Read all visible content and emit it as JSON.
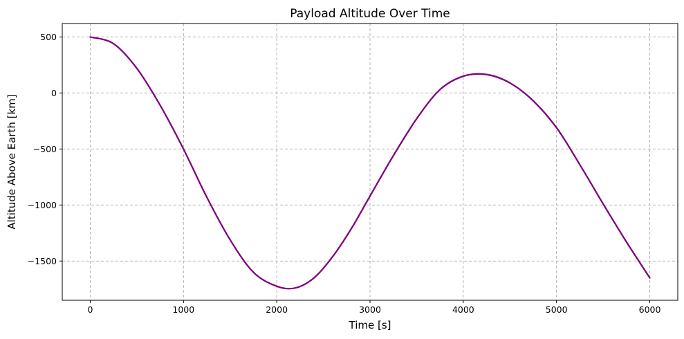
{
  "chart_data": {
    "type": "line",
    "title": "Payload Altitude Over Time",
    "xlabel": "Time [s]",
    "ylabel": "Altitude Above Earth [km]",
    "xlim": [
      -300,
      6300
    ],
    "ylim": [
      -1850,
      620
    ],
    "xticks": [
      0,
      1000,
      2000,
      3000,
      4000,
      5000,
      6000
    ],
    "xtick_labels": [
      "0",
      "1000",
      "2000",
      "3000",
      "4000",
      "5000",
      "6000"
    ],
    "yticks": [
      500,
      0,
      -500,
      -1000,
      -1500
    ],
    "ytick_labels": [
      "500",
      "0",
      "−500",
      "−1000",
      "−1500"
    ],
    "grid": true,
    "series": [
      {
        "color": "#800080",
        "x": [
          0,
          250,
          500,
          750,
          1000,
          1250,
          1500,
          1750,
          2000,
          2200,
          2400,
          2600,
          2800,
          3000,
          3250,
          3500,
          3750,
          4000,
          4250,
          4500,
          4750,
          5000,
          5250,
          5500,
          5750,
          6000
        ],
        "y": [
          500,
          440,
          220,
          -110,
          -500,
          -930,
          -1310,
          -1600,
          -1725,
          -1740,
          -1650,
          -1460,
          -1210,
          -920,
          -560,
          -230,
          30,
          150,
          165,
          90,
          -70,
          -310,
          -640,
          -990,
          -1330,
          -1650
        ]
      }
    ]
  }
}
